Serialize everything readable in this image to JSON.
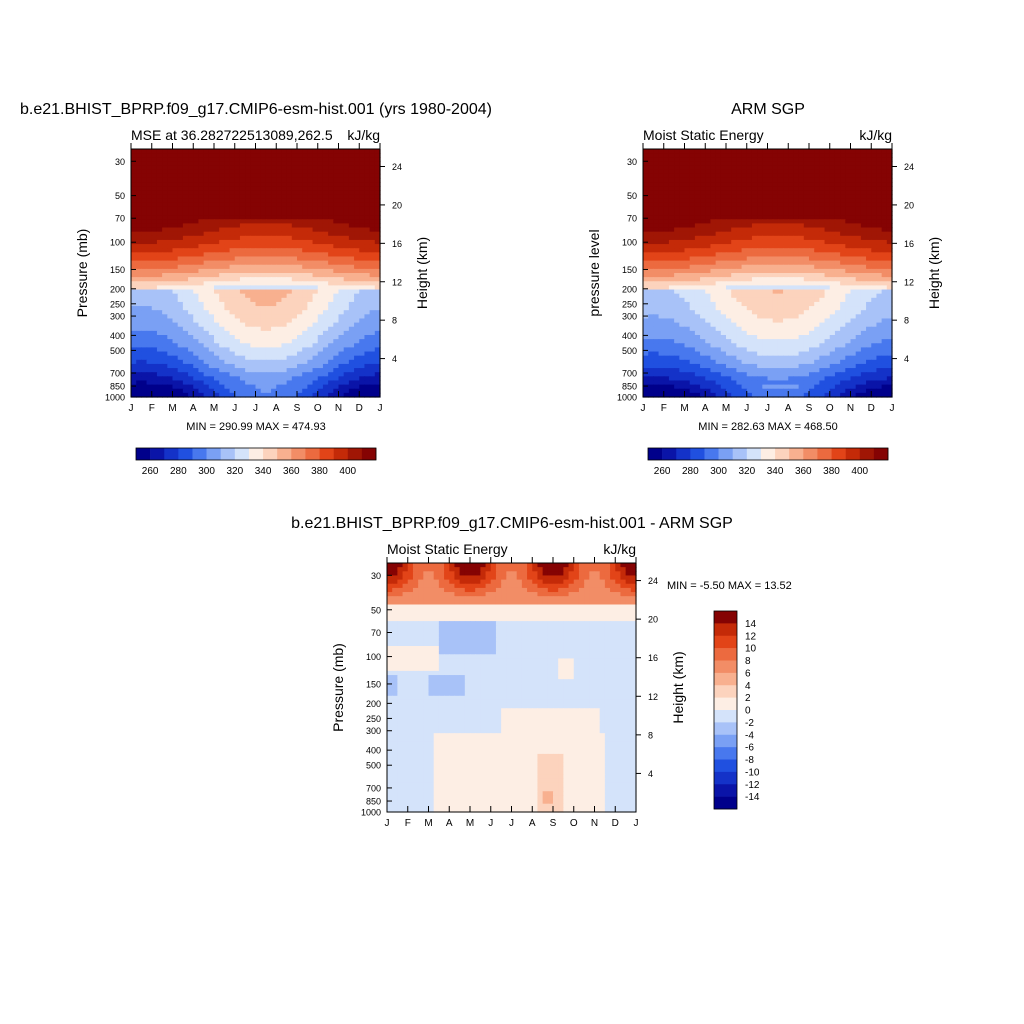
{
  "chart_data": [
    {
      "type": "heatmap",
      "title": "b.e21.BHIST_BPRP.f09_g17.CMIP6-esm-hist.001 (yrs 1980-2004)",
      "subtitle_left": "MSE at 36.282722513089,262.5",
      "subtitle_right": "kJ/kg",
      "ylabel": "Pressure (mb)",
      "ylabel_right": "Height (km)",
      "x_ticks": [
        "J",
        "F",
        "M",
        "A",
        "M",
        "J",
        "J",
        "A",
        "S",
        "O",
        "N",
        "D",
        "J"
      ],
      "y_ticks": [
        30,
        50,
        70,
        100,
        150,
        200,
        250,
        300,
        400,
        500,
        700,
        850,
        1000
      ],
      "y_ticks_right": [
        24,
        20,
        16,
        12,
        8,
        4
      ],
      "stats": "MIN = 290.99 MAX = 474.93",
      "colorbar_ticks": [
        260,
        280,
        300,
        320,
        340,
        360,
        380,
        400
      ],
      "min": 290.99,
      "max": 474.93,
      "y_scale": "log",
      "y_range": [
        1000,
        25
      ]
    },
    {
      "type": "heatmap",
      "title": "ARM SGP",
      "subtitle_left": "Moist Static Energy",
      "subtitle_right": "kJ/kg",
      "ylabel": "pressure level",
      "ylabel_right": "Height (km)",
      "x_ticks": [
        "J",
        "F",
        "M",
        "A",
        "M",
        "J",
        "J",
        "A",
        "S",
        "O",
        "N",
        "D",
        "J"
      ],
      "y_ticks": [
        30,
        50,
        70,
        100,
        150,
        200,
        250,
        300,
        400,
        500,
        700,
        850,
        1000
      ],
      "y_ticks_right": [
        24,
        20,
        16,
        12,
        8,
        4
      ],
      "stats": "MIN = 282.63 MAX = 468.50",
      "colorbar_ticks": [
        260,
        280,
        300,
        320,
        340,
        360,
        380,
        400
      ],
      "min": 282.63,
      "max": 468.5,
      "y_scale": "log",
      "y_range": [
        1000,
        25
      ]
    },
    {
      "type": "heatmap",
      "title": "b.e21.BHIST_BPRP.f09_g17.CMIP6-esm-hist.001 - ARM SGP",
      "subtitle_left": "Moist Static Energy",
      "subtitle_right": "kJ/kg",
      "ylabel": "Pressure (mb)",
      "ylabel_right": "Height (km)",
      "x_ticks": [
        "J",
        "F",
        "M",
        "A",
        "M",
        "J",
        "J",
        "A",
        "S",
        "O",
        "N",
        "D",
        "J"
      ],
      "y_ticks": [
        30,
        50,
        70,
        100,
        150,
        200,
        250,
        300,
        400,
        500,
        700,
        850,
        1000
      ],
      "y_ticks_right": [
        24,
        20,
        16,
        12,
        8,
        4
      ],
      "stats": "MIN =  -5.50 MAX =  13.52",
      "colorbar_ticks": [
        14,
        12,
        10,
        8,
        6,
        4,
        2,
        0,
        -2,
        -4,
        -6,
        -8,
        -10,
        -12,
        -14
      ],
      "min": -5.5,
      "max": 13.52,
      "y_scale": "log",
      "y_range": [
        1000,
        25
      ]
    }
  ],
  "colors": {
    "msepalette": [
      "#00008b",
      "#0a14a8",
      "#1432c8",
      "#2050e0",
      "#4878ee",
      "#7aa0f4",
      "#a8c2f8",
      "#d4e3fa",
      "#fdeee4",
      "#fcd3bd",
      "#f8b08f",
      "#f28d66",
      "#ec6a3f",
      "#e24418",
      "#c42a08",
      "#a01605",
      "#850303"
    ],
    "diffpalette": [
      "#00008b",
      "#0a14a8",
      "#1432c8",
      "#2050e0",
      "#4878ee",
      "#7aa0f4",
      "#a8c2f8",
      "#d4e3fa",
      "#fdeee4",
      "#fcd3bd",
      "#f8b08f",
      "#f28d66",
      "#ec6a3f",
      "#e24418",
      "#c42a08",
      "#850303"
    ]
  }
}
